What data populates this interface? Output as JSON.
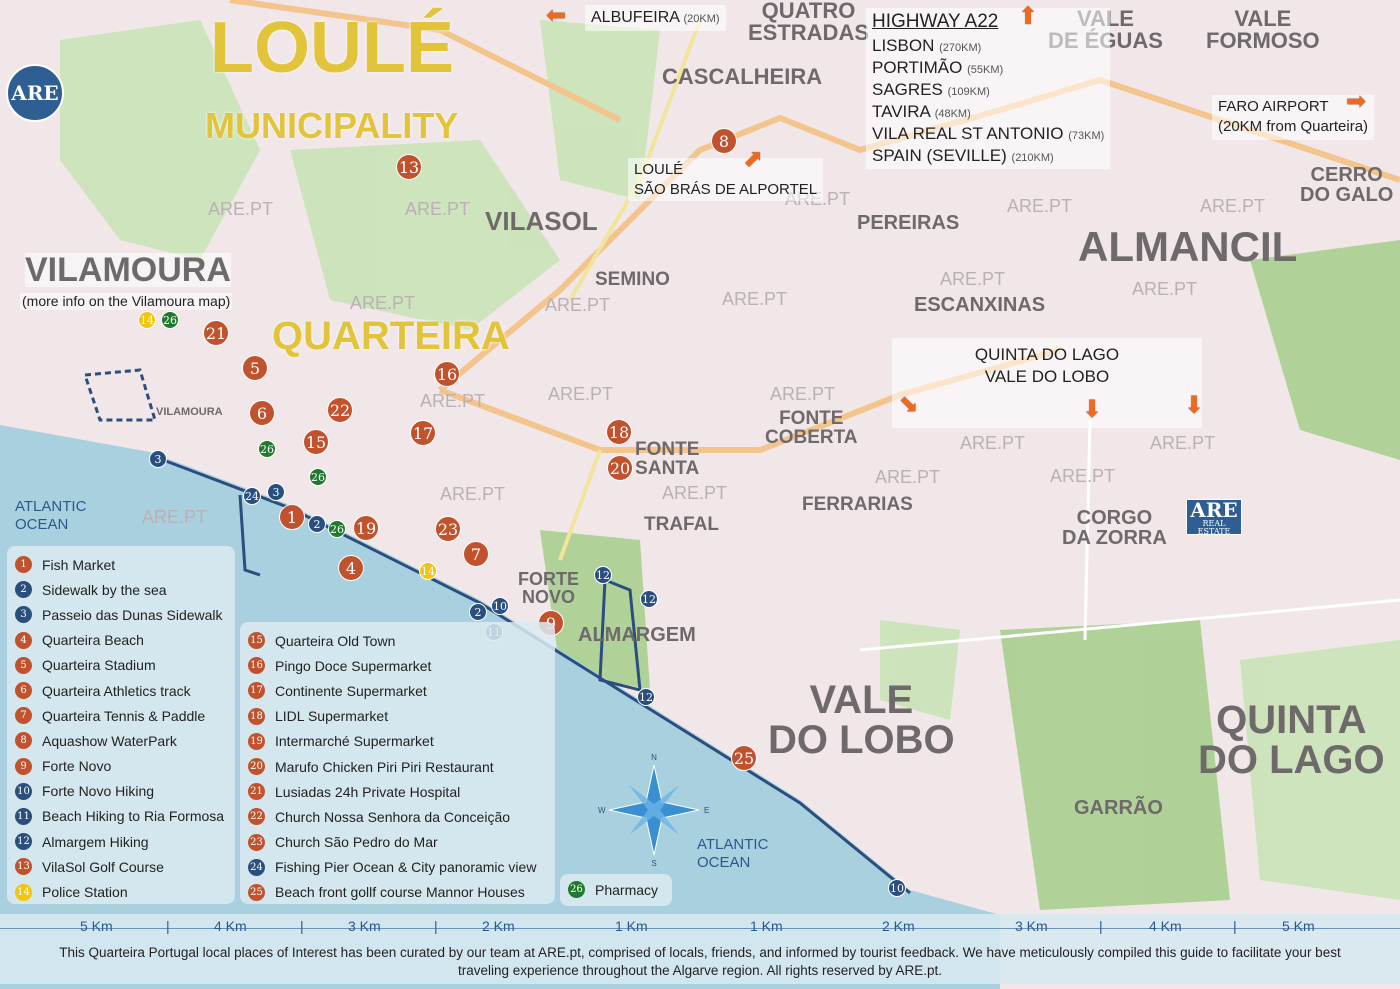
{
  "colors": {
    "orange_marker": "#c0532e",
    "blue_marker": "#2a4f7f",
    "green_marker": "#1f7a2e",
    "yellow_marker": "#f1c40f",
    "sea": "#a9d0df",
    "land": "#f1e6e8",
    "title": "#e2c43b",
    "arrow": "#ef6a1c"
  },
  "logo": {
    "text": "ARE",
    "text2": "ARE",
    "sub2": "REAL ESTATE"
  },
  "titles": {
    "loule": "LOULÉ",
    "municipality": "MUNICIPALITY",
    "quarteira": "QUARTEIRA",
    "vilamoura": "VILAMOURA",
    "vilamoura_note": "(more info on the Vilamoura map)"
  },
  "places": [
    {
      "id": "quatro",
      "text": "QUATRO\nESTRADAS"
    },
    {
      "id": "cascalheira",
      "text": "CASCALHEIRA"
    },
    {
      "id": "valeeguas",
      "text": "VALE\nDE ÉGUAS"
    },
    {
      "id": "valeformoso",
      "text": "VALE\nFORMOSO"
    },
    {
      "id": "cerro",
      "text": "CERRO\nDO GALO"
    },
    {
      "id": "vilasol",
      "text": "VILASOL"
    },
    {
      "id": "pereiras",
      "text": "PEREIRAS"
    },
    {
      "id": "almancil",
      "text": "ALMANCIL"
    },
    {
      "id": "semino",
      "text": "SEMINO"
    },
    {
      "id": "escanxinas",
      "text": "ESCANXINAS"
    },
    {
      "id": "fontecoberta",
      "text": "FONTE\nCOBERTA"
    },
    {
      "id": "fontesanta",
      "text": "FONTE\nSANTA"
    },
    {
      "id": "ferrarias",
      "text": "FERRARIAS"
    },
    {
      "id": "trafal",
      "text": "TRAFAL"
    },
    {
      "id": "corgo",
      "text": "CORGO\nDA ZORRA"
    },
    {
      "id": "fortenovo",
      "text": "FORTE\nNOVO"
    },
    {
      "id": "almargem",
      "text": "ALMARGEM"
    },
    {
      "id": "valedolobo",
      "text": "VALE\nDO LOBO"
    },
    {
      "id": "quintadolago",
      "text": "QUINTA\nDO LAGO"
    },
    {
      "id": "garrao",
      "text": "GARRÃO"
    },
    {
      "id": "vilamoura_small",
      "text": "VILAMOURA"
    }
  ],
  "watermark": "ARE.PT",
  "directions": {
    "albufeira": {
      "name": "ALBUFEIRA",
      "dist": "(20KM)"
    },
    "highway": {
      "title": "HIGHWAY A22",
      "items": [
        {
          "name": "LISBON",
          "dist": "(270KM)"
        },
        {
          "name": "PORTIMÃO",
          "dist": "(55KM)"
        },
        {
          "name": "SAGRES",
          "dist": "(109KM)"
        },
        {
          "name": "TAVIRA",
          "dist": "(48KM)"
        },
        {
          "name": "VILA REAL ST ANTONIO",
          "dist": "(73KM)"
        },
        {
          "name": "SPAIN (SEVILLE)",
          "dist": "(210KM)"
        }
      ]
    },
    "loule": {
      "line1": "LOULÉ",
      "line2": "SÃO BRÁS DE ALPORTEL"
    },
    "faro": {
      "line1": "FARO AIRPORT",
      "line2": "(20KM from Quarteira)"
    },
    "quinta": {
      "line1": "QUINTA DO LAGO",
      "line2": "VALE DO LOBO"
    }
  },
  "ocean_labels": [
    "ATLANTIC\nOCEAN",
    "ATLANTIC\nOCEAN"
  ],
  "markers": [
    {
      "n": "1",
      "c": "o"
    },
    {
      "n": "2",
      "c": "b"
    },
    {
      "n": "3",
      "c": "b"
    },
    {
      "n": "3",
      "c": "b"
    },
    {
      "n": "4",
      "c": "o"
    },
    {
      "n": "5",
      "c": "o"
    },
    {
      "n": "6",
      "c": "o"
    },
    {
      "n": "7",
      "c": "o"
    },
    {
      "n": "8",
      "c": "o"
    },
    {
      "n": "9",
      "c": "o"
    },
    {
      "n": "10",
      "c": "b"
    },
    {
      "n": "10",
      "c": "b"
    },
    {
      "n": "11",
      "c": "b"
    },
    {
      "n": "12",
      "c": "b"
    },
    {
      "n": "12",
      "c": "b"
    },
    {
      "n": "12",
      "c": "b"
    },
    {
      "n": "13",
      "c": "o"
    },
    {
      "n": "14",
      "c": "y"
    },
    {
      "n": "14",
      "c": "y"
    },
    {
      "n": "15",
      "c": "o"
    },
    {
      "n": "16",
      "c": "o"
    },
    {
      "n": "17",
      "c": "o"
    },
    {
      "n": "18",
      "c": "o"
    },
    {
      "n": "19",
      "c": "o"
    },
    {
      "n": "20",
      "c": "o"
    },
    {
      "n": "21",
      "c": "o"
    },
    {
      "n": "22",
      "c": "o"
    },
    {
      "n": "23",
      "c": "o"
    },
    {
      "n": "24",
      "c": "b"
    },
    {
      "n": "25",
      "c": "o"
    },
    {
      "n": "26",
      "c": "g"
    },
    {
      "n": "26",
      "c": "g"
    },
    {
      "n": "26",
      "c": "g"
    },
    {
      "n": "26",
      "c": "g"
    },
    {
      "n": "2",
      "c": "b"
    }
  ],
  "legend1": [
    {
      "n": "1",
      "c": "o",
      "label": "Fish Market"
    },
    {
      "n": "2",
      "c": "b",
      "label": "Sidewalk by the sea"
    },
    {
      "n": "3",
      "c": "b",
      "label": "Passeio das Dunas Sidewalk"
    },
    {
      "n": "4",
      "c": "o",
      "label": "Quarteira Beach"
    },
    {
      "n": "5",
      "c": "o",
      "label": "Quarteira Stadium"
    },
    {
      "n": "6",
      "c": "o",
      "label": "Quarteira Athletics track"
    },
    {
      "n": "7",
      "c": "o",
      "label": "Quarteira Tennis & Paddle"
    },
    {
      "n": "8",
      "c": "o",
      "label": "Aquashow WaterPark"
    },
    {
      "n": "9",
      "c": "o",
      "label": "Forte Novo"
    },
    {
      "n": "10",
      "c": "b",
      "label": "Forte Novo Hiking"
    },
    {
      "n": "11",
      "c": "b",
      "label": "Beach Hiking to Ria Formosa"
    },
    {
      "n": "12",
      "c": "b",
      "label": "Almargem Hiking"
    },
    {
      "n": "13",
      "c": "o",
      "label": "VilaSol Golf Course"
    },
    {
      "n": "14",
      "c": "y",
      "label": "Police Station"
    }
  ],
  "legend2": [
    {
      "n": "15",
      "c": "o",
      "label": "Quarteira Old Town"
    },
    {
      "n": "16",
      "c": "o",
      "label": "Pingo Doce Supermarket"
    },
    {
      "n": "17",
      "c": "o",
      "label": "Continente Supermarket"
    },
    {
      "n": "18",
      "c": "o",
      "label": "LIDL Supermarket"
    },
    {
      "n": "19",
      "c": "o",
      "label": "Intermarché Supermarket"
    },
    {
      "n": "20",
      "c": "o",
      "label": "Marufo Chicken Piri Piri Restaurant"
    },
    {
      "n": "21",
      "c": "o",
      "label": "Lusiadas 24h Private Hospital"
    },
    {
      "n": "22",
      "c": "o",
      "label": "Church Nossa Senhora da Conceição"
    },
    {
      "n": "23",
      "c": "o",
      "label": "Church São Pedro do Mar"
    },
    {
      "n": "24",
      "c": "b",
      "label": "Fishing Pier Ocean & City panoramic view"
    },
    {
      "n": "25",
      "c": "o",
      "label": "Beach front gollf course Mannor Houses"
    }
  ],
  "legend3": {
    "n": "26",
    "c": "g",
    "label": "Pharmacy"
  },
  "compass": {
    "n": "N",
    "s": "S",
    "e": "E",
    "w": "W"
  },
  "scale": [
    "5 Km",
    "4 Km",
    "3 Km",
    "2 Km",
    "1 Km",
    "1 Km",
    "2 Km",
    "3 Km",
    "4 Km",
    "5 Km"
  ],
  "footer": "This Quarteira Portugal local places of Interest has been curated by our team at ARE.pt, comprised of locals, friends, and informed by tourist feedback. We have meticulously compiled this guide to facilitate your best traveling experience throughout the Algarve region. All rights reserved by ARE.pt."
}
